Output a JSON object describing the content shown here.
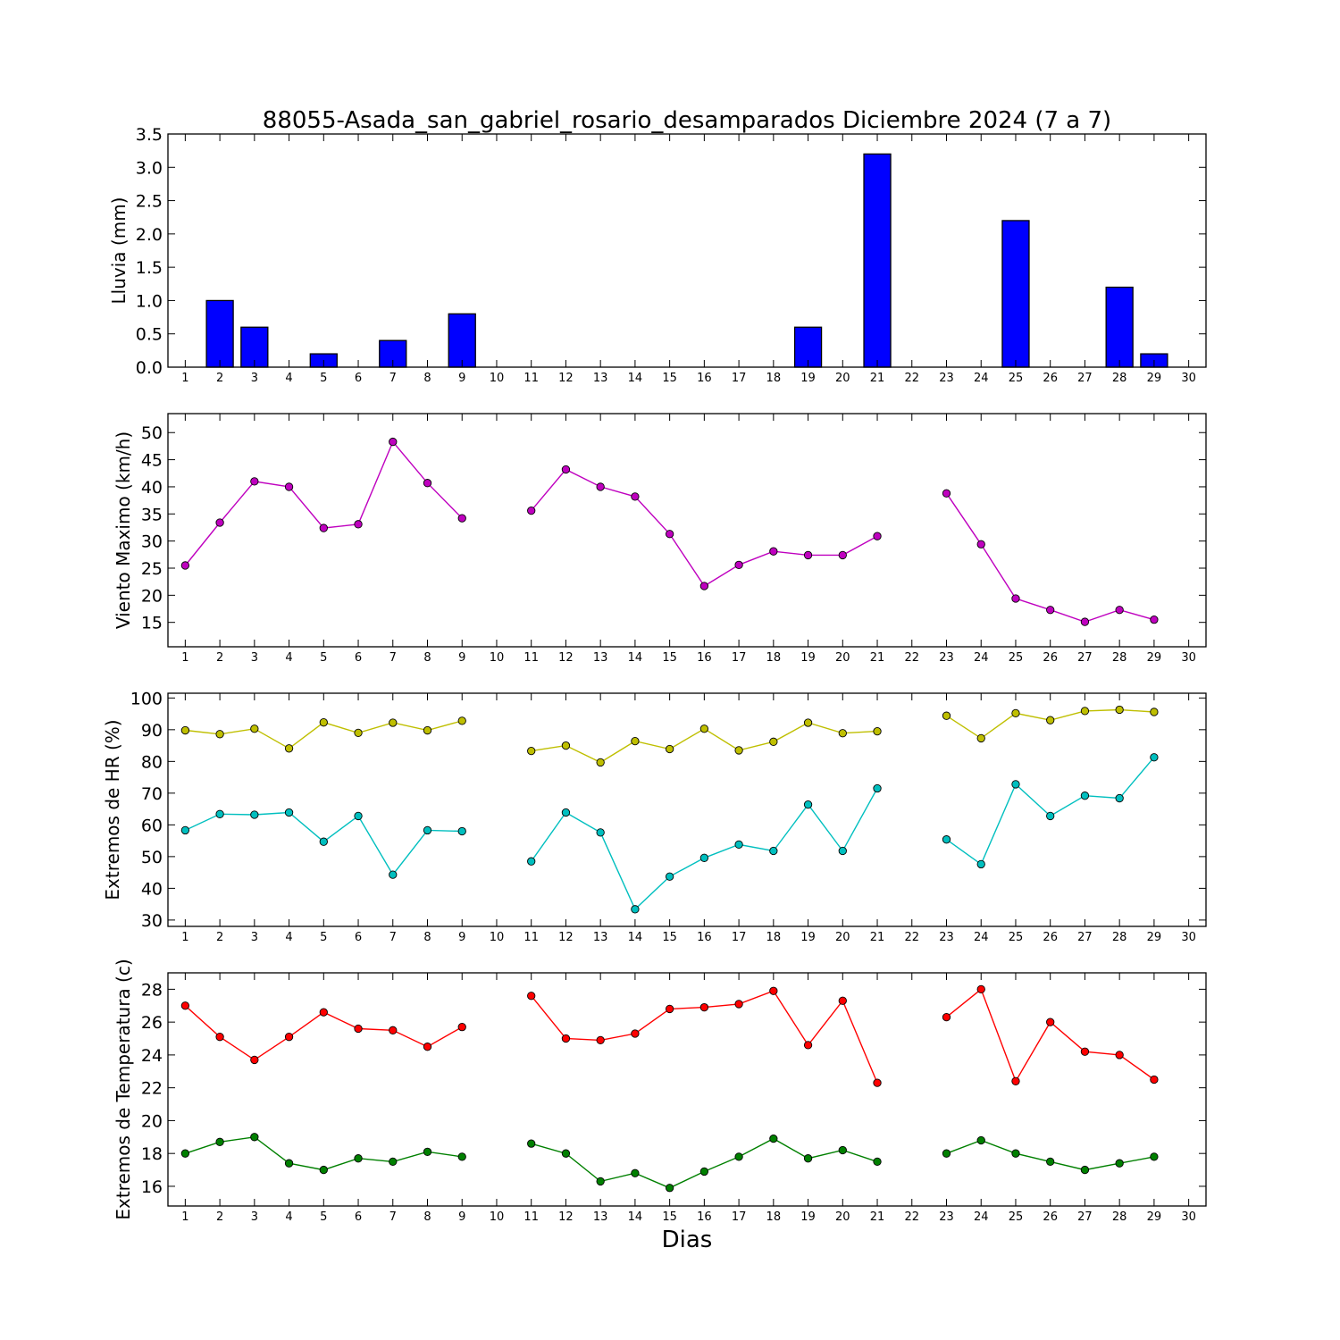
{
  "title": "88055-Asada_san_gabriel_rosario_desamparados Diciembre 2024  (7 a 7)",
  "xlabel": "Dias",
  "x_ticks": [
    "1",
    "2",
    "3",
    "4",
    "5",
    "6",
    "7",
    "8",
    "9",
    "10",
    "11",
    "12",
    "13",
    "14",
    "15",
    "16",
    "17",
    "18",
    "19",
    "20",
    "21",
    "22",
    "23",
    "24",
    "25",
    "26",
    "27",
    "28",
    "29",
    "30"
  ],
  "chart_data": [
    {
      "type": "bar",
      "ylabel": "Lluvia (mm)",
      "xlim": [
        0.5,
        30.5
      ],
      "ylim": [
        0,
        3.5
      ],
      "yticks": [
        "0.0",
        "0.5",
        "1.0",
        "1.5",
        "2.0",
        "2.5",
        "3.0",
        "3.5"
      ],
      "categories": [
        1,
        2,
        3,
        4,
        5,
        6,
        7,
        8,
        9,
        10,
        11,
        12,
        13,
        14,
        15,
        16,
        17,
        18,
        19,
        20,
        21,
        22,
        23,
        24,
        25,
        26,
        27,
        28,
        29
      ],
      "values": [
        0,
        1.0,
        0.6,
        0,
        0.2,
        0,
        0.4,
        0,
        0.8,
        0,
        0,
        0,
        0,
        0,
        0,
        0,
        0,
        0,
        0.6,
        0,
        3.2,
        0,
        0,
        0,
        2.2,
        0,
        0,
        1.2,
        0.2
      ],
      "color": "#0000ff"
    },
    {
      "type": "line",
      "ylabel": "Viento Maximo (km/h)",
      "xlim": [
        0.5,
        30.5
      ],
      "ylim": [
        10.5,
        53.5
      ],
      "yticks": [
        "15",
        "20",
        "25",
        "30",
        "35",
        "40",
        "45",
        "50"
      ],
      "x": [
        1,
        2,
        3,
        4,
        5,
        6,
        7,
        8,
        9,
        10,
        11,
        12,
        13,
        14,
        15,
        16,
        17,
        18,
        19,
        20,
        21,
        22,
        23,
        24,
        25,
        26,
        27,
        28,
        29
      ],
      "series": [
        {
          "color": "#bf00bf",
          "values": [
            25.5,
            33.4,
            41.0,
            40.0,
            32.4,
            33.1,
            48.3,
            40.7,
            34.2,
            null,
            35.6,
            43.2,
            40.0,
            38.2,
            31.3,
            21.7,
            25.6,
            28.1,
            27.4,
            27.4,
            30.9,
            null,
            38.8,
            29.4,
            19.4,
            17.3,
            15.1,
            17.3,
            15.5
          ]
        }
      ]
    },
    {
      "type": "line",
      "ylabel": "Extremos de HR (%)",
      "xlim": [
        0.5,
        30.5
      ],
      "ylim": [
        28,
        101.5
      ],
      "yticks": [
        "30",
        "40",
        "50",
        "60",
        "70",
        "80",
        "90",
        "100"
      ],
      "x": [
        1,
        2,
        3,
        4,
        5,
        6,
        7,
        8,
        9,
        10,
        11,
        12,
        13,
        14,
        15,
        16,
        17,
        18,
        19,
        20,
        21,
        22,
        23,
        24,
        25,
        26,
        27,
        28,
        29
      ],
      "series": [
        {
          "color": "#bfbf00",
          "values": [
            89.8,
            88.6,
            90.3,
            84.1,
            92.3,
            89.0,
            92.2,
            89.8,
            92.8,
            null,
            83.3,
            85.0,
            79.7,
            86.4,
            83.9,
            90.3,
            83.5,
            86.2,
            92.2,
            88.9,
            89.5,
            null,
            94.4,
            87.3,
            95.2,
            93.0,
            95.9,
            96.3,
            95.6
          ]
        },
        {
          "color": "#00bfbf",
          "values": [
            58.3,
            63.4,
            63.2,
            63.9,
            54.7,
            62.8,
            44.3,
            58.3,
            58.0,
            null,
            48.5,
            63.9,
            57.6,
            33.4,
            43.7,
            49.6,
            53.8,
            51.8,
            66.4,
            51.8,
            71.5,
            null,
            55.4,
            47.6,
            72.8,
            62.8,
            69.2,
            68.4,
            81.3
          ]
        }
      ]
    },
    {
      "type": "line",
      "ylabel": "Extremos de Temperatura (c)",
      "xlim": [
        0.5,
        30.5
      ],
      "ylim": [
        14.8,
        29.0
      ],
      "yticks": [
        "16",
        "18",
        "20",
        "22",
        "24",
        "26",
        "28"
      ],
      "x": [
        1,
        2,
        3,
        4,
        5,
        6,
        7,
        8,
        9,
        10,
        11,
        12,
        13,
        14,
        15,
        16,
        17,
        18,
        19,
        20,
        21,
        22,
        23,
        24,
        25,
        26,
        27,
        28,
        29
      ],
      "series": [
        {
          "color": "#ff0000",
          "values": [
            27.0,
            25.1,
            23.7,
            25.1,
            26.6,
            25.6,
            25.5,
            24.5,
            25.7,
            null,
            27.6,
            25.0,
            24.9,
            25.3,
            26.8,
            26.9,
            27.1,
            27.9,
            24.6,
            27.3,
            22.3,
            null,
            26.3,
            28.0,
            22.4,
            26.0,
            24.2,
            24.0,
            22.5
          ]
        },
        {
          "color": "#008000",
          "values": [
            18.0,
            18.7,
            19.0,
            17.4,
            17.0,
            17.7,
            17.5,
            18.1,
            17.8,
            null,
            18.6,
            18.0,
            16.3,
            16.8,
            15.9,
            16.9,
            17.8,
            18.9,
            17.7,
            18.2,
            17.5,
            null,
            18.0,
            18.8,
            18.0,
            17.5,
            17.0,
            17.4,
            17.8
          ]
        }
      ]
    }
  ]
}
